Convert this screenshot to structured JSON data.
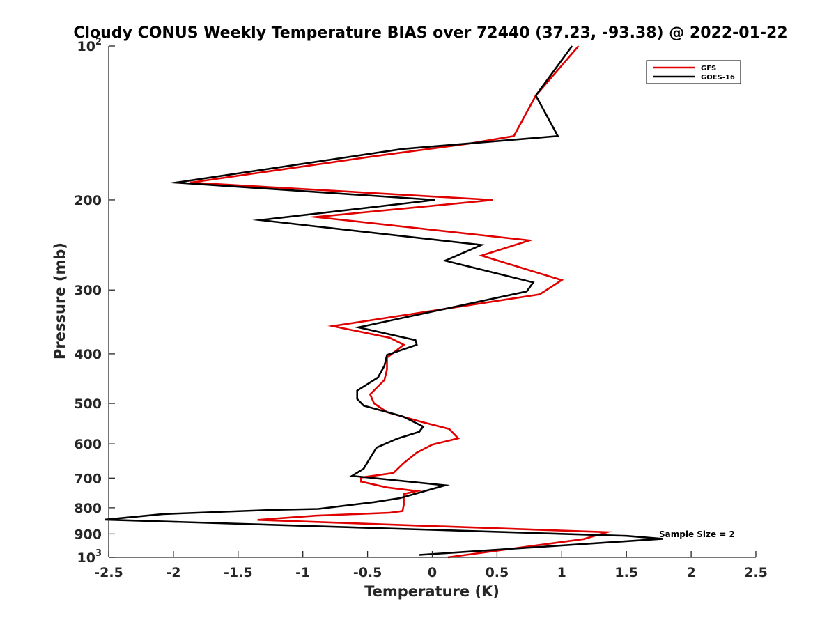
{
  "chart_data": {
    "type": "line",
    "title": "Cloudy CONUS Weekly Temperature BIAS over 72440 (37.23, -93.38) @ 2022-01-22",
    "xlabel": "Temperature (K)",
    "ylabel": "Pressure (mb)",
    "xlim": [
      -2.5,
      2.5
    ],
    "ylim": [
      100,
      1000
    ],
    "y_scale": "log",
    "y_reversed": true,
    "x_ticks": [
      "-2.5",
      "-2",
      "-1.5",
      "-1",
      "-0.5",
      "0",
      "0.5",
      "1",
      "1.5",
      "2",
      "2.5"
    ],
    "x_tick_values": [
      -2.5,
      -2,
      -1.5,
      -1,
      -0.5,
      0,
      0.5,
      1,
      1.5,
      2,
      2.5
    ],
    "y_ticks": [
      {
        "value": 100,
        "base": "10",
        "exp": "2",
        "label": ""
      },
      {
        "value": 200,
        "label": "200"
      },
      {
        "value": 300,
        "label": "300"
      },
      {
        "value": 400,
        "label": "400"
      },
      {
        "value": 500,
        "label": "500"
      },
      {
        "value": 600,
        "label": "600"
      },
      {
        "value": 700,
        "label": "700"
      },
      {
        "value": 800,
        "label": "800"
      },
      {
        "value": 900,
        "label": "900"
      },
      {
        "value": 1000,
        "base": "10",
        "exp": "3",
        "label": ""
      }
    ],
    "grid": false,
    "legend": "top-right",
    "annotation": "Sample Size = 2",
    "series": [
      {
        "name": "GFS",
        "color": "#e00000",
        "points": [
          [
            1.13,
            100
          ],
          [
            0.8,
            125
          ],
          [
            0.63,
            150
          ],
          [
            0.3,
            155
          ],
          [
            -0.5,
            165
          ],
          [
            -1.87,
            185
          ],
          [
            0.47,
            200
          ],
          [
            -0.9,
            216
          ],
          [
            0.75,
            240
          ],
          [
            0.38,
            257
          ],
          [
            1.0,
            287
          ],
          [
            0.83,
            306
          ],
          [
            -0.77,
            353
          ],
          [
            -0.33,
            372
          ],
          [
            -0.22,
            384
          ],
          [
            -0.35,
            407
          ],
          [
            -0.35,
            429
          ],
          [
            -0.37,
            450
          ],
          [
            -0.48,
            480
          ],
          [
            -0.45,
            500
          ],
          [
            -0.35,
            520
          ],
          [
            -0.1,
            542
          ],
          [
            0.13,
            561
          ],
          [
            0.2,
            585
          ],
          [
            0.0,
            602
          ],
          [
            -0.12,
            624
          ],
          [
            -0.22,
            654
          ],
          [
            -0.3,
            684
          ],
          [
            -0.55,
            698
          ],
          [
            -0.55,
            711
          ],
          [
            -0.35,
            730
          ],
          [
            -0.12,
            742
          ],
          [
            -0.22,
            752
          ],
          [
            -0.22,
            790
          ],
          [
            -0.23,
            812
          ],
          [
            -0.33,
            818
          ],
          [
            -0.9,
            829
          ],
          [
            -1.35,
            845
          ],
          [
            1.35,
            893
          ],
          [
            1.17,
            921
          ],
          [
            0.12,
            1000
          ]
        ]
      },
      {
        "name": "GOES-16",
        "color": "#000000",
        "points": [
          [
            1.08,
            100
          ],
          [
            0.8,
            125
          ],
          [
            0.97,
            150
          ],
          [
            -0.23,
            159
          ],
          [
            -1.98,
            185
          ],
          [
            0.02,
            200
          ],
          [
            -1.33,
            219
          ],
          [
            0.38,
            245
          ],
          [
            0.1,
            263
          ],
          [
            0.78,
            290
          ],
          [
            0.73,
            302
          ],
          [
            -0.57,
            355
          ],
          [
            -0.13,
            376
          ],
          [
            -0.12,
            384
          ],
          [
            -0.35,
            402
          ],
          [
            -0.37,
            422
          ],
          [
            -0.42,
            445
          ],
          [
            -0.58,
            472
          ],
          [
            -0.58,
            490
          ],
          [
            -0.53,
            505
          ],
          [
            -0.23,
            530
          ],
          [
            -0.07,
            555
          ],
          [
            -0.1,
            568
          ],
          [
            -0.27,
            586
          ],
          [
            -0.43,
            610
          ],
          [
            -0.47,
            633
          ],
          [
            -0.53,
            671
          ],
          [
            -0.62,
            693
          ],
          [
            0.1,
            723
          ],
          [
            -0.25,
            766
          ],
          [
            -0.45,
            780
          ],
          [
            -0.88,
            804
          ],
          [
            -1.25,
            808
          ],
          [
            -2.08,
            823
          ],
          [
            -2.53,
            844
          ],
          [
            1.5,
            908
          ],
          [
            1.78,
            920
          ],
          [
            -0.1,
            989
          ]
        ]
      }
    ]
  }
}
